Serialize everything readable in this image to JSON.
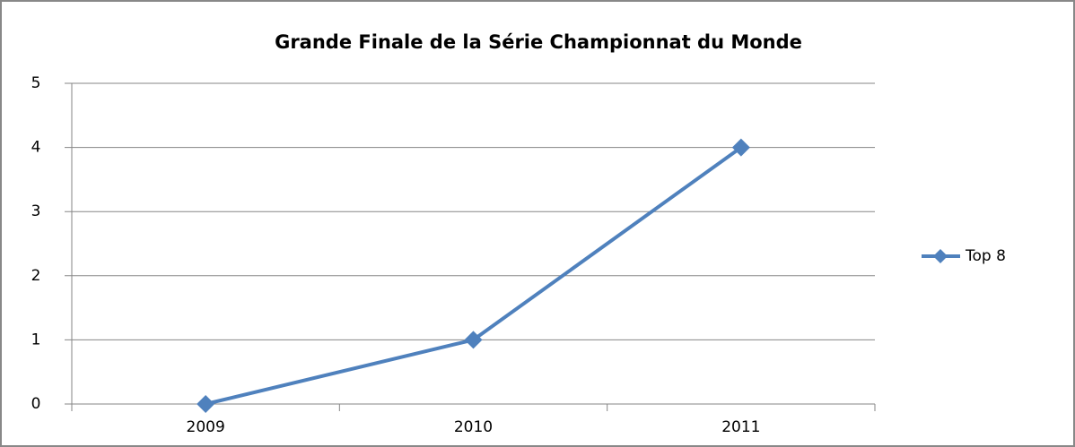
{
  "chart_data": {
    "type": "line",
    "title": "Grande Finale de la Série Championnat du Monde",
    "categories": [
      "2009",
      "2010",
      "2011"
    ],
    "series": [
      {
        "name": "Top 8",
        "color": "#4f81bd",
        "values": [
          0,
          1,
          4
        ]
      }
    ],
    "ylim": [
      0,
      5
    ],
    "yticks": [
      0,
      1,
      2,
      3,
      4,
      5
    ],
    "grid": true,
    "legend": "right"
  }
}
